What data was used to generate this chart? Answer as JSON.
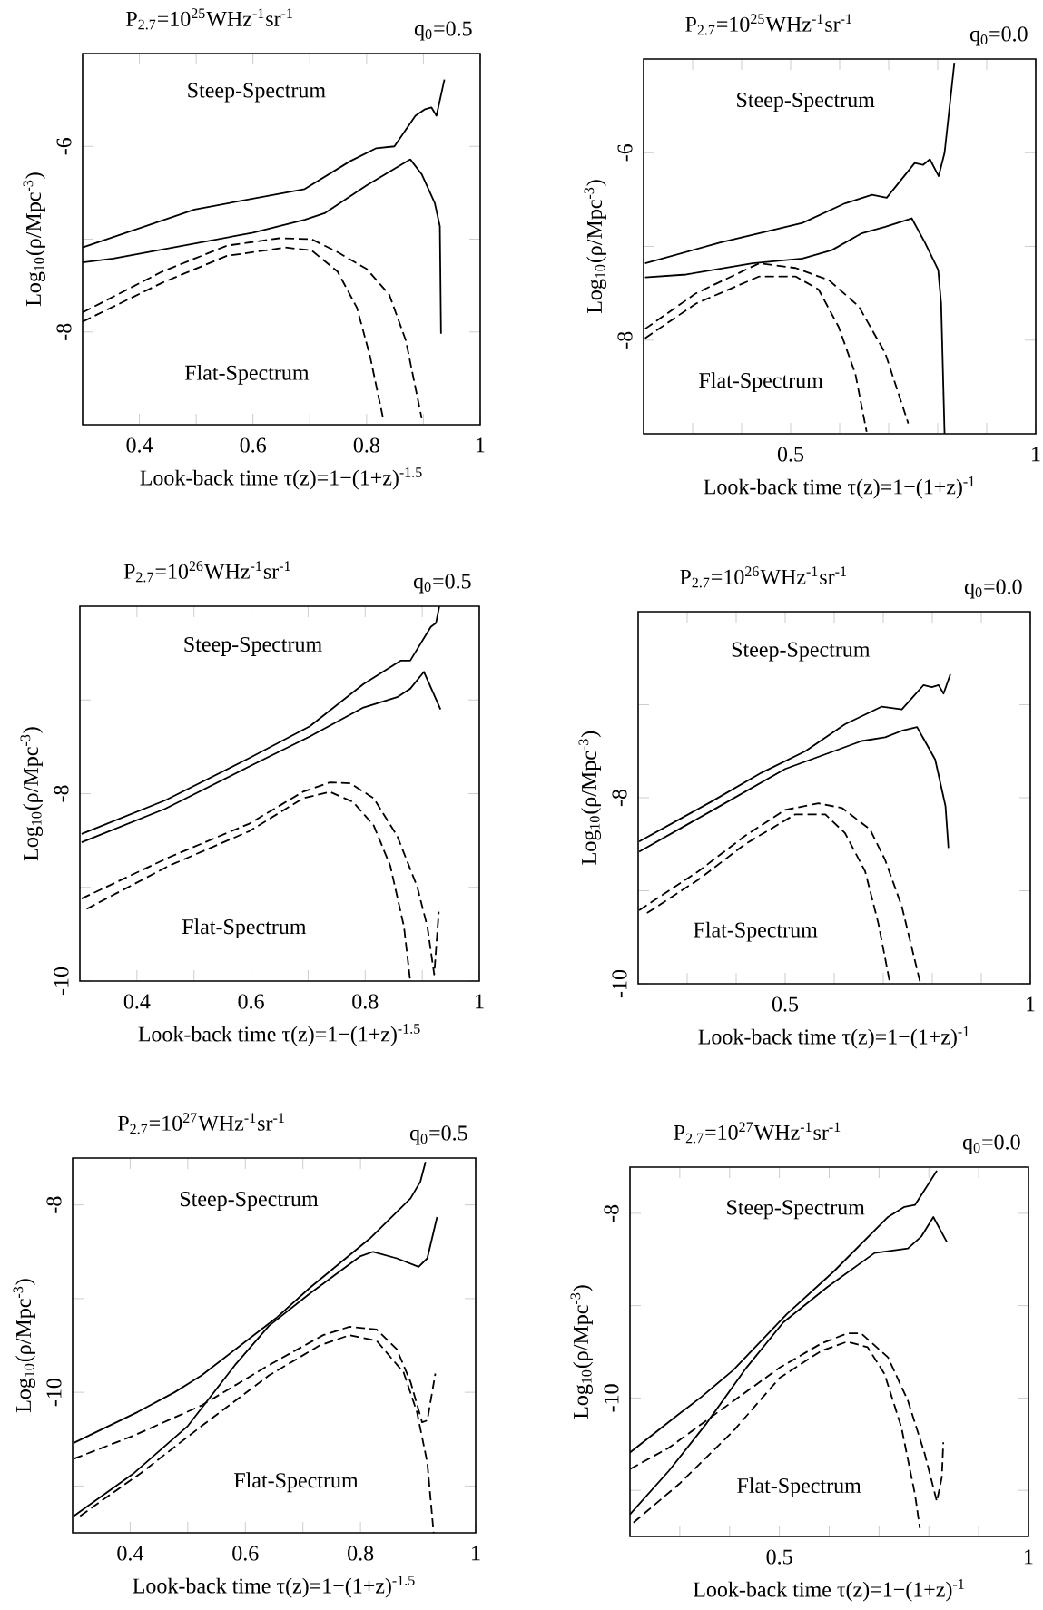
{
  "chart_data": [
    {
      "type": "line",
      "title": "P$_{2.7}$=10$^{25}$WHz$^{-1}$sr$^{-1}$",
      "subtitle": "q$_{0}$=0.5",
      "xlabel": "Look-back time τ(z)=1−(1+z)$^{-1.5}$",
      "ylabel": "Log$_{10}$(ρ/Mpc$^{-3}$)",
      "xlim": [
        0.3,
        1
      ],
      "ylim": [
        -9,
        -5
      ],
      "xticks": [
        0.4,
        {
          "value": 0.5,
          "label": null
        },
        0.6,
        {
          "value": 0.7,
          "label": null
        },
        0.8,
        {
          "value": 0.9,
          "label": null
        },
        1
      ],
      "yticks": [
        -8,
        {
          "value": -7,
          "label": null
        },
        -6
      ],
      "annotations": [
        "Steep-Spectrum",
        "Flat-Spectrum"
      ],
      "series": [
        {
          "color": "#000000",
          "line_style": "solid",
          "x": [
            0.3,
            0.497,
            0.691,
            0.771,
            0.817,
            0.849,
            0.886,
            0.903,
            0.914,
            0.923,
            0.937
          ],
          "values": [
            -7.09,
            -6.68,
            -6.46,
            -6.16,
            -6.02,
            -6.0,
            -5.67,
            -5.6,
            -5.58,
            -5.67,
            -5.28
          ]
        },
        {
          "color": "#000000",
          "line_style": "solid",
          "x": [
            0.3,
            0.354,
            0.6,
            0.691,
            0.726,
            0.8,
            0.877,
            0.897,
            0.92,
            0.929,
            0.931
          ],
          "values": [
            -7.25,
            -7.21,
            -6.93,
            -6.79,
            -6.72,
            -6.42,
            -6.14,
            -6.3,
            -6.61,
            -6.86,
            -8.02
          ]
        },
        {
          "color": "#000000",
          "line_style": "dashed",
          "x": [
            0.3,
            0.44,
            0.554,
            0.646,
            0.703,
            0.749,
            0.8,
            0.84,
            0.869,
            0.897
          ],
          "values": [
            -7.79,
            -7.35,
            -7.07,
            -6.99,
            -7.0,
            -7.14,
            -7.32,
            -7.6,
            -8.09,
            -8.93
          ]
        },
        {
          "color": "#000000",
          "line_style": "dashed",
          "x": [
            0.3,
            0.44,
            0.554,
            0.657,
            0.703,
            0.749,
            0.783,
            0.806,
            0.829
          ],
          "values": [
            -7.89,
            -7.47,
            -7.18,
            -7.09,
            -7.12,
            -7.35,
            -7.74,
            -8.26,
            -8.93
          ]
        }
      ]
    },
    {
      "type": "line",
      "title": "P$_{2.7}$=10$^{25}$WHz$^{-1}$sr$^{-1}$",
      "subtitle": "q$_{0}$=0.0",
      "xlabel": "Look-back time τ(z)=1−(1+z)$^{-1}$",
      "ylabel": "Log$_{10}$(ρ/Mpc$^{-3}$)",
      "xlim": [
        0.2,
        1
      ],
      "ylim": [
        -9,
        -5
      ],
      "xticks": [
        {
          "value": 0.3,
          "label": null
        },
        {
          "value": 0.4,
          "label": null
        },
        0.5,
        {
          "value": 0.6,
          "label": null
        },
        {
          "value": 0.7,
          "label": null
        },
        {
          "value": 0.8,
          "label": null
        },
        {
          "value": 0.9,
          "label": null
        },
        1
      ],
      "yticks": [
        -8,
        {
          "value": -7,
          "label": null
        },
        -6
      ],
      "annotations": [
        "Steep-Spectrum",
        "Flat-Spectrum"
      ],
      "series": [
        {
          "color": "#000000",
          "line_style": "solid",
          "x": [
            0.203,
            0.355,
            0.524,
            0.611,
            0.666,
            0.696,
            0.753,
            0.77,
            0.784,
            0.802,
            0.814,
            0.834
          ],
          "values": [
            -7.18,
            -6.96,
            -6.75,
            -6.54,
            -6.45,
            -6.48,
            -6.11,
            -6.13,
            -6.07,
            -6.25,
            -6.0,
            -5.04
          ]
        },
        {
          "color": "#000000",
          "line_style": "solid",
          "x": [
            0.203,
            0.287,
            0.422,
            0.524,
            0.584,
            0.645,
            0.693,
            0.747,
            0.774,
            0.801,
            0.807,
            0.814
          ],
          "values": [
            -7.33,
            -7.3,
            -7.18,
            -7.13,
            -7.04,
            -6.86,
            -6.79,
            -6.7,
            -6.96,
            -7.25,
            -7.61,
            -9.0
          ]
        },
        {
          "color": "#000000",
          "line_style": "dashed",
          "x": [
            0.203,
            0.307,
            0.436,
            0.51,
            0.578,
            0.639,
            0.693,
            0.74
          ],
          "values": [
            -7.88,
            -7.5,
            -7.18,
            -7.23,
            -7.36,
            -7.64,
            -8.14,
            -8.89
          ]
        },
        {
          "color": "#000000",
          "line_style": "dashed",
          "x": [
            0.203,
            0.307,
            0.436,
            0.51,
            0.557,
            0.598,
            0.632,
            0.655
          ],
          "values": [
            -7.98,
            -7.61,
            -7.32,
            -7.32,
            -7.46,
            -7.86,
            -8.36,
            -8.98
          ]
        }
      ]
    },
    {
      "type": "line",
      "title": "P$_{2.7}$=10$^{26}$WHz$^{-1}$sr$^{-1}$",
      "subtitle": "q$_{0}$=0.5",
      "xlabel": "Look-back time τ(z)=1−(1+z)$^{-1.5}$",
      "ylabel": "Log$_{10}$(ρ/Mpc$^{-3}$)",
      "xlim": [
        0.3,
        1
      ],
      "ylim": [
        -10,
        -6
      ],
      "xticks": [
        0.4,
        {
          "value": 0.5,
          "label": null
        },
        0.6,
        {
          "value": 0.7,
          "label": null
        },
        0.8,
        {
          "value": 0.9,
          "label": null
        },
        1
      ],
      "yticks": [
        -10,
        {
          "value": -9,
          "label": null
        },
        -8,
        {
          "value": -7,
          "label": null
        }
      ],
      "annotations": [
        "Steep-Spectrum",
        "Flat-Spectrum"
      ],
      "series": [
        {
          "color": "#000000",
          "line_style": "solid",
          "x": [
            0.303,
            0.45,
            0.597,
            0.703,
            0.797,
            0.862,
            0.879,
            0.915,
            0.924,
            0.93
          ],
          "values": [
            -8.43,
            -8.07,
            -7.62,
            -7.28,
            -6.83,
            -6.58,
            -6.58,
            -6.22,
            -6.18,
            -6.0
          ]
        },
        {
          "color": "#000000",
          "line_style": "solid",
          "x": [
            0.303,
            0.45,
            0.597,
            0.703,
            0.797,
            0.856,
            0.879,
            0.903,
            0.932
          ],
          "values": [
            -8.52,
            -8.16,
            -7.71,
            -7.39,
            -7.08,
            -6.97,
            -6.88,
            -6.7,
            -7.1
          ]
        },
        {
          "color": "#000000",
          "line_style": "dashed",
          "x": [
            0.303,
            0.456,
            0.597,
            0.691,
            0.738,
            0.774,
            0.815,
            0.856,
            0.891,
            0.909,
            0.921,
            0.929
          ],
          "values": [
            -9.12,
            -8.68,
            -8.32,
            -7.98,
            -7.88,
            -7.89,
            -8.05,
            -8.45,
            -8.99,
            -9.42,
            -9.93,
            -9.26
          ]
        },
        {
          "color": "#000000",
          "line_style": "dashed",
          "x": [
            0.312,
            0.456,
            0.597,
            0.691,
            0.738,
            0.779,
            0.815,
            0.844,
            0.868,
            0.879
          ],
          "values": [
            -9.23,
            -8.77,
            -8.4,
            -8.05,
            -7.98,
            -8.09,
            -8.34,
            -8.77,
            -9.42,
            -10.0
          ]
        }
      ]
    },
    {
      "type": "line",
      "title": "P$_{2.7}$=10$^{26}$WHz$^{-1}$sr$^{-1}$",
      "subtitle": "q$_{0}$=0.0",
      "xlabel": "Look-back time τ(z)=1−(1+z)$^{-1}$",
      "ylabel": "Log$_{10}$(ρ/Mpc$^{-3}$)",
      "xlim": [
        0.2,
        1
      ],
      "ylim": [
        -10,
        -6
      ],
      "xticks": [
        {
          "value": 0.3,
          "label": null
        },
        {
          "value": 0.4,
          "label": null
        },
        0.5,
        {
          "value": 0.6,
          "label": null
        },
        {
          "value": 0.7,
          "label": null
        },
        {
          "value": 0.8,
          "label": null
        },
        {
          "value": 0.9,
          "label": null
        },
        1
      ],
      "yticks": [
        -10,
        {
          "value": -9,
          "label": null
        },
        -8,
        {
          "value": -7,
          "label": null
        }
      ],
      "annotations": [
        "Steep-Spectrum",
        "Flat-Spectrum"
      ],
      "series": [
        {
          "color": "#000000",
          "line_style": "solid",
          "x": [
            0.202,
            0.35,
            0.452,
            0.541,
            0.622,
            0.697,
            0.738,
            0.782,
            0.799,
            0.813,
            0.823,
            0.837
          ],
          "values": [
            -8.47,
            -8.04,
            -7.73,
            -7.5,
            -7.21,
            -7.02,
            -7.05,
            -6.79,
            -6.81,
            -6.79,
            -6.88,
            -6.67
          ]
        },
        {
          "color": "#000000",
          "line_style": "solid",
          "x": [
            0.202,
            0.35,
            0.5,
            0.656,
            0.704,
            0.738,
            0.769,
            0.806,
            0.827,
            0.833
          ],
          "values": [
            -8.58,
            -8.14,
            -7.69,
            -7.39,
            -7.35,
            -7.28,
            -7.24,
            -7.59,
            -8.09,
            -8.54
          ]
        },
        {
          "color": "#000000",
          "line_style": "dashed",
          "x": [
            0.202,
            0.323,
            0.418,
            0.5,
            0.568,
            0.616,
            0.673,
            0.704,
            0.738,
            0.776
          ],
          "values": [
            -9.21,
            -8.79,
            -8.41,
            -8.13,
            -8.06,
            -8.11,
            -8.34,
            -8.67,
            -9.17,
            -10.0
          ]
        },
        {
          "color": "#000000",
          "line_style": "dashed",
          "x": [
            0.218,
            0.323,
            0.418,
            0.52,
            0.582,
            0.622,
            0.663,
            0.69,
            0.714
          ],
          "values": [
            -9.24,
            -8.88,
            -8.5,
            -8.18,
            -8.18,
            -8.38,
            -8.79,
            -9.35,
            -10.0
          ]
        }
      ]
    },
    {
      "type": "line",
      "title": "P$_{2.7}$=10$^{27}$WHz$^{-1}$sr$^{-1}$",
      "subtitle": "q$_{0}$=0.5",
      "xlabel": "Look-back time τ(z)=1−(1+z)$^{-1.5}$",
      "ylabel": "Log$_{10}$(ρ/Mpc$^{-3}$)",
      "xlim": [
        0.3,
        1
      ],
      "ylim": [
        -11.5,
        -7.5
      ],
      "xticks": [
        0.4,
        {
          "value": 0.5,
          "label": null
        },
        0.6,
        {
          "value": 0.7,
          "label": null
        },
        0.8,
        {
          "value": 0.9,
          "label": null
        },
        1
      ],
      "yticks": [
        {
          "value": -11,
          "label": null
        },
        -10,
        {
          "value": -9,
          "label": null
        },
        -8
      ],
      "annotations": [
        "Steep-Spectrum",
        "Flat-Spectrum"
      ],
      "series": [
        {
          "color": "#000000",
          "line_style": "solid",
          "x": [
            0.302,
            0.413,
            0.477,
            0.524,
            0.653,
            0.711,
            0.816,
            0.887,
            0.904,
            0.913
          ],
          "values": [
            -10.54,
            -10.21,
            -10.0,
            -9.82,
            -9.21,
            -8.89,
            -8.36,
            -7.93,
            -7.75,
            -7.54
          ]
        },
        {
          "color": "#000000",
          "line_style": "solid",
          "x": [
            0.302,
            0.407,
            0.5,
            0.582,
            0.641,
            0.711,
            0.799,
            0.822,
            0.863,
            0.901,
            0.916,
            0.933
          ],
          "values": [
            -11.32,
            -10.86,
            -10.36,
            -9.71,
            -9.29,
            -8.95,
            -8.55,
            -8.5,
            -8.57,
            -8.66,
            -8.57,
            -8.13
          ]
        },
        {
          "color": "#000000",
          "line_style": "dashed",
          "x": [
            0.302,
            0.407,
            0.524,
            0.641,
            0.735,
            0.781,
            0.828,
            0.863,
            0.887,
            0.907,
            0.916,
            0.93
          ],
          "values": [
            -10.71,
            -10.46,
            -10.14,
            -9.71,
            -9.39,
            -9.3,
            -9.33,
            -9.54,
            -9.89,
            -10.32,
            -10.3,
            -9.8
          ]
        },
        {
          "color": "#000000",
          "line_style": "dashed",
          "x": [
            0.313,
            0.419,
            0.524,
            0.641,
            0.729,
            0.781,
            0.828,
            0.875,
            0.898,
            0.916,
            0.927
          ],
          "values": [
            -11.32,
            -10.86,
            -10.36,
            -9.82,
            -9.5,
            -9.39,
            -9.45,
            -9.79,
            -10.21,
            -10.75,
            -11.5
          ]
        }
      ]
    },
    {
      "type": "line",
      "title": "P$_{2.7}$=10$^{27}$WHz$^{-1}$sr$^{-1}$",
      "subtitle": "q$_{0}$=0.0",
      "xlabel": "Look-back time τ(z)=1−(1+z)$^{-1}$",
      "ylabel": "Log$_{10}$(ρ/Mpc$^{-3}$)",
      "xlim": [
        0.2,
        1
      ],
      "ylim": [
        -11.5,
        -7.5
      ],
      "xticks": [
        {
          "value": 0.3,
          "label": null
        },
        {
          "value": 0.4,
          "label": null
        },
        0.5,
        {
          "value": 0.6,
          "label": null
        },
        {
          "value": 0.7,
          "label": null
        },
        {
          "value": 0.8,
          "label": null
        },
        {
          "value": 0.9,
          "label": null
        },
        1
      ],
      "yticks": [
        {
          "value": -11,
          "label": null
        },
        -10,
        {
          "value": -9,
          "label": null
        },
        -8
      ],
      "annotations": [
        "Steep-Spectrum",
        "Flat-Spectrum"
      ],
      "series": [
        {
          "color": "#000000",
          "line_style": "solid",
          "x": [
            0.2,
            0.299,
            0.343,
            0.407,
            0.515,
            0.609,
            0.718,
            0.751,
            0.772,
            0.816
          ],
          "values": [
            -10.59,
            -10.17,
            -9.99,
            -9.7,
            -9.09,
            -8.63,
            -8.04,
            -7.93,
            -7.91,
            -7.54
          ]
        },
        {
          "color": "#000000",
          "line_style": "solid",
          "x": [
            0.2,
            0.278,
            0.353,
            0.434,
            0.508,
            0.596,
            0.691,
            0.758,
            0.785,
            0.809,
            0.836
          ],
          "values": [
            -11.26,
            -10.79,
            -10.28,
            -9.67,
            -9.18,
            -8.8,
            -8.43,
            -8.38,
            -8.25,
            -8.04,
            -8.31
          ]
        },
        {
          "color": "#000000",
          "line_style": "dashed",
          "x": [
            0.2,
            0.278,
            0.38,
            0.501,
            0.584,
            0.636,
            0.664,
            0.718,
            0.758,
            0.792,
            0.816,
            0.826,
            0.829
          ],
          "values": [
            -10.77,
            -10.54,
            -10.14,
            -9.67,
            -9.41,
            -9.3,
            -9.3,
            -9.56,
            -10.03,
            -10.61,
            -11.12,
            -10.86,
            -10.48
          ]
        },
        {
          "color": "#000000",
          "line_style": "dashed",
          "x": [
            0.207,
            0.299,
            0.407,
            0.501,
            0.584,
            0.636,
            0.677,
            0.711,
            0.745,
            0.772,
            0.782
          ],
          "values": [
            -11.35,
            -10.93,
            -10.36,
            -9.78,
            -9.49,
            -9.39,
            -9.45,
            -9.74,
            -10.32,
            -11.04,
            -11.41
          ]
        }
      ]
    }
  ]
}
